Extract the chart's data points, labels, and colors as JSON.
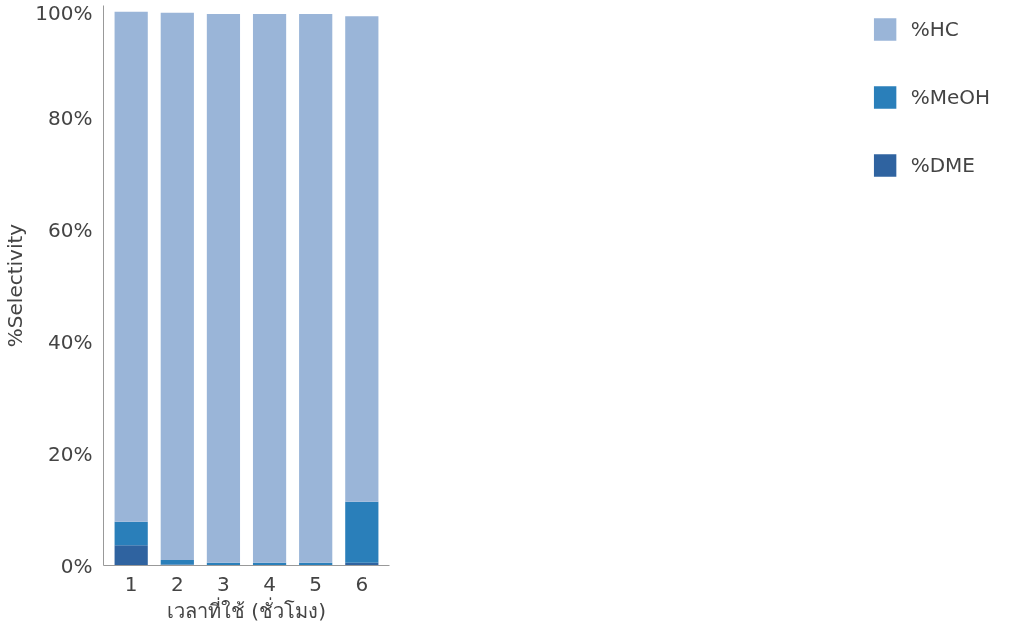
{
  "chart_data": {
    "type": "bar",
    "stacked": true,
    "xlabel": "เวลาที่ใช้ (ชั่วโมง)",
    "ylabel": "%Selectivity",
    "categories": [
      "1",
      "2",
      "3",
      "4",
      "5",
      "6"
    ],
    "series": [
      {
        "name": "%DME",
        "color": "#2f63a0",
        "values": [
          3.6,
          0.2,
          0.1,
          0.1,
          0.1,
          0.5
        ]
      },
      {
        "name": "%MeOH",
        "color": "#2a7fba",
        "values": [
          4.2,
          0.8,
          0.4,
          0.4,
          0.4,
          10.9
        ]
      },
      {
        "name": "%HC",
        "color": "#9ab5d8",
        "values": [
          91.1,
          97.7,
          98.0,
          98.0,
          98.0,
          86.7
        ]
      }
    ],
    "ylim": [
      0,
      100
    ],
    "yticks": [
      {
        "value": 0,
        "label": "0%"
      },
      {
        "value": 20,
        "label": "20%"
      },
      {
        "value": 40,
        "label": "40%"
      },
      {
        "value": 60,
        "label": "60%"
      },
      {
        "value": 80,
        "label": "80%"
      },
      {
        "value": 100,
        "label": "100%"
      }
    ],
    "grid": false,
    "legend": "right"
  }
}
